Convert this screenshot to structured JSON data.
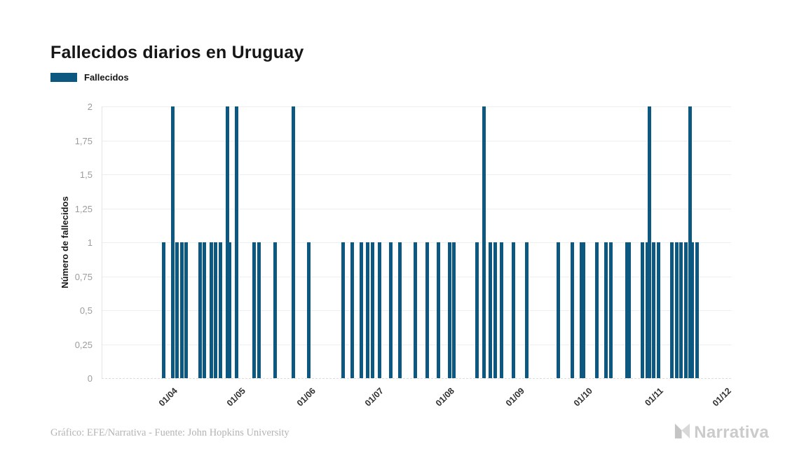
{
  "header": {
    "title": "Fallecidos diarios en Uruguay"
  },
  "legend": {
    "items": [
      {
        "label": "Fallecidos",
        "color": "#0d5880"
      }
    ]
  },
  "y_axis": {
    "title": "Número de fallecidos"
  },
  "footer": {
    "credit": "Gráfico: EFE/Narrativa - Fuente: John Hopkins University",
    "brand": "Narrativa"
  },
  "colors": {
    "bar": "#0d5880",
    "grid": "#eeeeee",
    "axis_border": "#e4e4e4",
    "y_tick_text": "#9c9c9c",
    "x_tick_text": "#303030",
    "title_text": "#161616",
    "footer_text": "#b4b4b4",
    "logo_gray": "#cbcbcb"
  },
  "chart_data": {
    "type": "bar",
    "title": "Fallecidos diarios en Uruguay",
    "xlabel": "",
    "ylabel": "Número de fallecidos",
    "ylim": [
      0,
      2
    ],
    "grid": "horizontal",
    "legend_position": "top-left",
    "bar_color": "#0d5880",
    "y_ticks": [
      0,
      0.25,
      0.5,
      0.75,
      1,
      1.25,
      1.5,
      1.75,
      2
    ],
    "y_tick_labels": [
      "0",
      "0,25",
      "0,5",
      "0,75",
      "1",
      "1,25",
      "1,5",
      "1,75",
      "2"
    ],
    "x_ticks": [
      {
        "date": "2020-04-01",
        "label": "01/04"
      },
      {
        "date": "2020-05-01",
        "label": "01/05"
      },
      {
        "date": "2020-06-01",
        "label": "01/06"
      },
      {
        "date": "2020-07-01",
        "label": "01/07"
      },
      {
        "date": "2020-08-01",
        "label": "01/08"
      },
      {
        "date": "2020-09-01",
        "label": "01/09"
      },
      {
        "date": "2020-10-01",
        "label": "01/10"
      },
      {
        "date": "2020-11-01",
        "label": "01/11"
      },
      {
        "date": "2020-12-01",
        "label": "01/12"
      }
    ],
    "x_range": [
      "2020-03-04",
      "2020-12-06"
    ],
    "series": [
      {
        "name": "Fallecidos",
        "points": [
          [
            "2020-03-31",
            1
          ],
          [
            "2020-04-04",
            2
          ],
          [
            "2020-04-06",
            1
          ],
          [
            "2020-04-08",
            1
          ],
          [
            "2020-04-10",
            1
          ],
          [
            "2020-04-16",
            1
          ],
          [
            "2020-04-18",
            1
          ],
          [
            "2020-04-21",
            1
          ],
          [
            "2020-04-23",
            1
          ],
          [
            "2020-04-25",
            1
          ],
          [
            "2020-04-28",
            2
          ],
          [
            "2020-04-29",
            1
          ],
          [
            "2020-05-02",
            2
          ],
          [
            "2020-05-10",
            1
          ],
          [
            "2020-05-12",
            1
          ],
          [
            "2020-05-19",
            1
          ],
          [
            "2020-05-27",
            2
          ],
          [
            "2020-06-03",
            1
          ],
          [
            "2020-06-18",
            1
          ],
          [
            "2020-06-22",
            1
          ],
          [
            "2020-06-26",
            1
          ],
          [
            "2020-06-29",
            1
          ],
          [
            "2020-07-01",
            1
          ],
          [
            "2020-07-04",
            1
          ],
          [
            "2020-07-09",
            1
          ],
          [
            "2020-07-13",
            1
          ],
          [
            "2020-07-20",
            1
          ],
          [
            "2020-07-25",
            1
          ],
          [
            "2020-07-30",
            1
          ],
          [
            "2020-08-04",
            1
          ],
          [
            "2020-08-06",
            1
          ],
          [
            "2020-08-16",
            1
          ],
          [
            "2020-08-19",
            2
          ],
          [
            "2020-08-22",
            1
          ],
          [
            "2020-08-24",
            1
          ],
          [
            "2020-08-27",
            1
          ],
          [
            "2020-09-01",
            1
          ],
          [
            "2020-09-07",
            1
          ],
          [
            "2020-09-21",
            1
          ],
          [
            "2020-09-27",
            1
          ],
          [
            "2020-10-01",
            1
          ],
          [
            "2020-10-02",
            1
          ],
          [
            "2020-10-08",
            1
          ],
          [
            "2020-10-12",
            1
          ],
          [
            "2020-10-14",
            1
          ],
          [
            "2020-10-21",
            1
          ],
          [
            "2020-10-22",
            1
          ],
          [
            "2020-10-28",
            1
          ],
          [
            "2020-10-30",
            1
          ],
          [
            "2020-10-31",
            2
          ],
          [
            "2020-11-02",
            1
          ],
          [
            "2020-11-04",
            1
          ],
          [
            "2020-11-10",
            1
          ],
          [
            "2020-11-12",
            1
          ],
          [
            "2020-11-14",
            1
          ],
          [
            "2020-11-16",
            1
          ],
          [
            "2020-11-18",
            2
          ],
          [
            "2020-11-19",
            1
          ],
          [
            "2020-11-21",
            1
          ]
        ]
      }
    ]
  }
}
